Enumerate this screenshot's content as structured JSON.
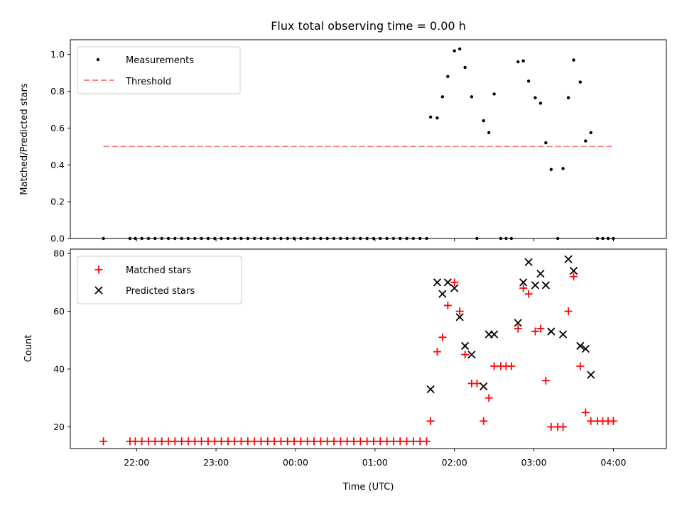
{
  "chart_data": [
    {
      "type": "scatter",
      "title": "Flux total observing time = 0.00 h",
      "ylabel": "Matched/Predicted stars",
      "xlabel": "",
      "ylim": [
        0.0,
        1.08
      ],
      "yticks": [
        "0.0",
        "0.2",
        "0.4",
        "0.6",
        "0.8",
        "1.0"
      ],
      "legend_position": "top-left",
      "grid": false,
      "series": [
        {
          "name": "Measurements",
          "color": "#000000",
          "marker": "dot",
          "points": [
            [
              "21:35",
              0.0
            ],
            [
              "21:55",
              0.0
            ],
            [
              "21:59",
              0.0
            ],
            [
              "22:04",
              0.0
            ],
            [
              "22:09",
              0.0
            ],
            [
              "22:14",
              0.0
            ],
            [
              "22:19",
              0.0
            ],
            [
              "22:24",
              0.0
            ],
            [
              "22:29",
              0.0
            ],
            [
              "22:34",
              0.0
            ],
            [
              "22:39",
              0.0
            ],
            [
              "22:44",
              0.0
            ],
            [
              "22:49",
              0.0
            ],
            [
              "22:54",
              0.0
            ],
            [
              "22:59",
              0.0
            ],
            [
              "23:04",
              0.0
            ],
            [
              "23:09",
              0.0
            ],
            [
              "23:14",
              0.0
            ],
            [
              "23:19",
              0.0
            ],
            [
              "23:24",
              0.0
            ],
            [
              "23:29",
              0.0
            ],
            [
              "23:34",
              0.0
            ],
            [
              "23:39",
              0.0
            ],
            [
              "23:44",
              0.0
            ],
            [
              "23:49",
              0.0
            ],
            [
              "23:54",
              0.0
            ],
            [
              "23:59",
              0.0
            ],
            [
              "00:04",
              0.0
            ],
            [
              "00:09",
              0.0
            ],
            [
              "00:14",
              0.0
            ],
            [
              "00:19",
              0.0
            ],
            [
              "00:24",
              0.0
            ],
            [
              "00:29",
              0.0
            ],
            [
              "00:34",
              0.0
            ],
            [
              "00:39",
              0.0
            ],
            [
              "00:44",
              0.0
            ],
            [
              "00:49",
              0.0
            ],
            [
              "00:54",
              0.0
            ],
            [
              "00:59",
              0.0
            ],
            [
              "01:04",
              0.0
            ],
            [
              "01:09",
              0.0
            ],
            [
              "01:14",
              0.0
            ],
            [
              "01:19",
              0.0
            ],
            [
              "01:24",
              0.0
            ],
            [
              "01:29",
              0.0
            ],
            [
              "01:34",
              0.0
            ],
            [
              "01:39",
              0.0
            ],
            [
              "01:42",
              0.66
            ],
            [
              "01:47",
              0.655
            ],
            [
              "01:51",
              0.77
            ],
            [
              "01:55",
              0.88
            ],
            [
              "02:00",
              1.02
            ],
            [
              "02:04",
              1.03
            ],
            [
              "02:08",
              0.93
            ],
            [
              "02:13",
              0.77
            ],
            [
              "02:17",
              0.0
            ],
            [
              "02:22",
              0.64
            ],
            [
              "02:26",
              0.575
            ],
            [
              "02:30",
              0.785
            ],
            [
              "02:35",
              0.0
            ],
            [
              "02:39",
              0.0
            ],
            [
              "02:43",
              0.0
            ],
            [
              "02:48",
              0.96
            ],
            [
              "02:52",
              0.965
            ],
            [
              "02:56",
              0.855
            ],
            [
              "03:01",
              0.765
            ],
            [
              "03:05",
              0.735
            ],
            [
              "03:09",
              0.52
            ],
            [
              "03:13",
              0.375
            ],
            [
              "03:18",
              0.0
            ],
            [
              "03:22",
              0.38
            ],
            [
              "03:26",
              0.765
            ],
            [
              "03:30",
              0.97
            ],
            [
              "03:35",
              0.85
            ],
            [
              "03:39",
              0.53
            ],
            [
              "03:43",
              0.575
            ],
            [
              "03:48",
              0.0
            ],
            [
              "03:52",
              0.0
            ],
            [
              "03:56",
              0.0
            ],
            [
              "04:00",
              0.0
            ]
          ]
        },
        {
          "name": "Threshold",
          "color": "#ff7f7f",
          "style": "dashed",
          "points": [
            [
              "21:35",
              0.5
            ],
            [
              "04:00",
              0.5
            ]
          ]
        }
      ]
    },
    {
      "type": "scatter",
      "title": "",
      "ylabel": "Count",
      "xlabel": "Time (UTC)",
      "ylim": [
        12.5,
        81.5
      ],
      "yticks": [
        "20",
        "40",
        "60",
        "80"
      ],
      "xticks": [
        "22:00",
        "23:00",
        "00:00",
        "01:00",
        "02:00",
        "03:00",
        "04:00"
      ],
      "legend_position": "top-left",
      "grid": false,
      "series": [
        {
          "name": "Matched stars",
          "color": "#ff0000",
          "marker": "plus",
          "points": [
            [
              "21:35",
              15
            ],
            [
              "21:55",
              15
            ],
            [
              "21:59",
              15
            ],
            [
              "22:04",
              15
            ],
            [
              "22:09",
              15
            ],
            [
              "22:14",
              15
            ],
            [
              "22:19",
              15
            ],
            [
              "22:24",
              15
            ],
            [
              "22:29",
              15
            ],
            [
              "22:34",
              15
            ],
            [
              "22:39",
              15
            ],
            [
              "22:44",
              15
            ],
            [
              "22:49",
              15
            ],
            [
              "22:54",
              15
            ],
            [
              "22:59",
              15
            ],
            [
              "23:04",
              15
            ],
            [
              "23:09",
              15
            ],
            [
              "23:14",
              15
            ],
            [
              "23:19",
              15
            ],
            [
              "23:24",
              15
            ],
            [
              "23:29",
              15
            ],
            [
              "23:34",
              15
            ],
            [
              "23:39",
              15
            ],
            [
              "23:44",
              15
            ],
            [
              "23:49",
              15
            ],
            [
              "23:54",
              15
            ],
            [
              "23:59",
              15
            ],
            [
              "00:04",
              15
            ],
            [
              "00:09",
              15
            ],
            [
              "00:14",
              15
            ],
            [
              "00:19",
              15
            ],
            [
              "00:24",
              15
            ],
            [
              "00:29",
              15
            ],
            [
              "00:34",
              15
            ],
            [
              "00:39",
              15
            ],
            [
              "00:44",
              15
            ],
            [
              "00:49",
              15
            ],
            [
              "00:54",
              15
            ],
            [
              "00:59",
              15
            ],
            [
              "01:04",
              15
            ],
            [
              "01:09",
              15
            ],
            [
              "01:14",
              15
            ],
            [
              "01:19",
              15
            ],
            [
              "01:24",
              15
            ],
            [
              "01:29",
              15
            ],
            [
              "01:34",
              15
            ],
            [
              "01:39",
              15
            ],
            [
              "01:42",
              22
            ],
            [
              "01:47",
              46
            ],
            [
              "01:51",
              51
            ],
            [
              "01:55",
              62
            ],
            [
              "02:00",
              70
            ],
            [
              "02:04",
              60
            ],
            [
              "02:08",
              45
            ],
            [
              "02:13",
              35
            ],
            [
              "02:17",
              35
            ],
            [
              "02:22",
              22
            ],
            [
              "02:26",
              30
            ],
            [
              "02:30",
              41
            ],
            [
              "02:35",
              41
            ],
            [
              "02:39",
              41
            ],
            [
              "02:43",
              41
            ],
            [
              "02:48",
              54
            ],
            [
              "02:52",
              68
            ],
            [
              "02:56",
              66
            ],
            [
              "03:01",
              53
            ],
            [
              "03:05",
              54
            ],
            [
              "03:09",
              36
            ],
            [
              "03:13",
              20
            ],
            [
              "03:18",
              20
            ],
            [
              "03:22",
              20
            ],
            [
              "03:26",
              60
            ],
            [
              "03:30",
              72
            ],
            [
              "03:35",
              41
            ],
            [
              "03:39",
              25
            ],
            [
              "03:43",
              22
            ],
            [
              "03:48",
              22
            ],
            [
              "03:52",
              22
            ],
            [
              "03:56",
              22
            ],
            [
              "04:00",
              22
            ]
          ]
        },
        {
          "name": "Predicted stars",
          "color": "#000000",
          "marker": "x",
          "points": [
            [
              "01:42",
              33
            ],
            [
              "01:47",
              70
            ],
            [
              "01:51",
              66
            ],
            [
              "01:55",
              70
            ],
            [
              "02:00",
              68
            ],
            [
              "02:04",
              58
            ],
            [
              "02:08",
              48
            ],
            [
              "02:13",
              45
            ],
            [
              "02:22",
              34
            ],
            [
              "02:26",
              52
            ],
            [
              "02:30",
              52
            ],
            [
              "02:48",
              56
            ],
            [
              "02:52",
              70
            ],
            [
              "02:56",
              77
            ],
            [
              "03:01",
              69
            ],
            [
              "03:05",
              73
            ],
            [
              "03:09",
              69
            ],
            [
              "03:13",
              53
            ],
            [
              "03:22",
              52
            ],
            [
              "03:26",
              78
            ],
            [
              "03:30",
              74
            ],
            [
              "03:35",
              48
            ],
            [
              "03:39",
              47
            ],
            [
              "03:43",
              38
            ]
          ]
        }
      ]
    }
  ]
}
